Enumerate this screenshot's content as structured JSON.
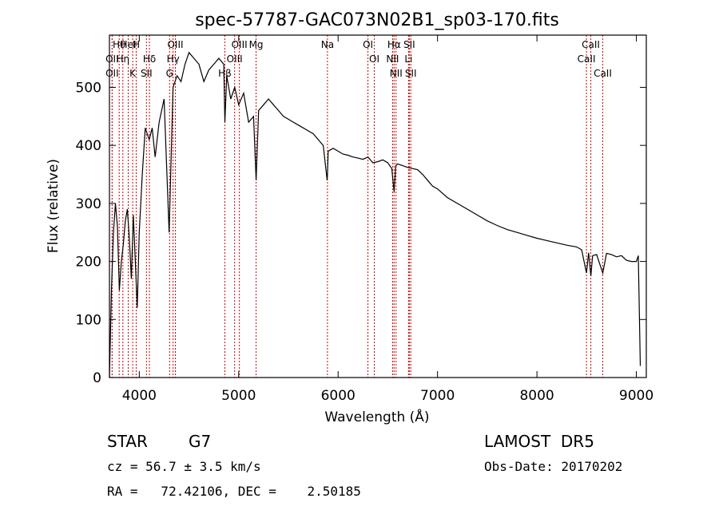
{
  "chart_data": {
    "type": "line",
    "title": "spec-57787-GAC073N02B1_sp03-170.fits",
    "xlabel": "Wavelength (Å)",
    "ylabel": "Flux (relative)",
    "xlim": [
      3700,
      9100
    ],
    "ylim": [
      0,
      590
    ],
    "x_ticks": [
      4000,
      5000,
      6000,
      7000,
      8000,
      9000
    ],
    "y_ticks": [
      0,
      100,
      200,
      300,
      400,
      500
    ],
    "grid": false,
    "series": [
      {
        "x": [
          3700,
          3720,
          3740,
          3760,
          3780,
          3800,
          3820,
          3840,
          3860,
          3880,
          3900,
          3920,
          3940,
          3960,
          3980,
          4000,
          4030,
          4060,
          4100,
          4130,
          4160,
          4200,
          4250,
          4300,
          4340,
          4380,
          4420,
          4460,
          4500,
          4550,
          4600,
          4650,
          4700,
          4750,
          4800,
          4850,
          4861,
          4880,
          4920,
          4960,
          5000,
          5050,
          5100,
          5150,
          5175,
          5200,
          5250,
          5300,
          5350,
          5400,
          5450,
          5500,
          5550,
          5600,
          5650,
          5700,
          5750,
          5800,
          5850,
          5890,
          5893,
          5900,
          5950,
          6000,
          6050,
          6100,
          6150,
          6200,
          6250,
          6300,
          6350,
          6400,
          6450,
          6500,
          6540,
          6563,
          6580,
          6600,
          6650,
          6700,
          6750,
          6800,
          6850,
          6900,
          6950,
          7000,
          7100,
          7200,
          7300,
          7400,
          7500,
          7600,
          7700,
          7800,
          7900,
          8000,
          8100,
          8200,
          8300,
          8400,
          8450,
          8498,
          8520,
          8542,
          8560,
          8600,
          8662,
          8700,
          8750,
          8800,
          8850,
          8900,
          8950,
          9000,
          9020,
          9040
        ],
        "y": [
          0,
          150,
          250,
          300,
          260,
          150,
          200,
          230,
          270,
          290,
          240,
          170,
          280,
          200,
          120,
          250,
          350,
          430,
          410,
          430,
          380,
          440,
          480,
          250,
          500,
          520,
          510,
          540,
          560,
          550,
          540,
          510,
          530,
          540,
          550,
          540,
          440,
          520,
          480,
          500,
          470,
          490,
          440,
          450,
          340,
          460,
          470,
          480,
          470,
          460,
          450,
          445,
          440,
          435,
          430,
          425,
          420,
          410,
          400,
          340,
          350,
          390,
          395,
          390,
          385,
          383,
          380,
          378,
          376,
          380,
          370,
          372,
          375,
          370,
          360,
          320,
          365,
          368,
          365,
          362,
          360,
          358,
          350,
          340,
          330,
          325,
          310,
          300,
          290,
          280,
          270,
          262,
          255,
          250,
          245,
          240,
          236,
          232,
          228,
          225,
          220,
          180,
          215,
          175,
          210,
          212,
          180,
          214,
          212,
          208,
          210,
          202,
          200,
          200,
          210,
          20
        ]
      }
    ],
    "lines": [
      {
        "label": "Hθ",
        "x": 3798
      },
      {
        "label": "OII",
        "x": 3727
      },
      {
        "label": "OII",
        "x": 3727
      },
      {
        "label": "HeI",
        "x": 3889
      },
      {
        "label": "Hη",
        "x": 3835
      },
      {
        "label": "K",
        "x": 3934
      },
      {
        "label": "H",
        "x": 3969
      },
      {
        "label": "Hδ",
        "x": 4102
      },
      {
        "label": "SII",
        "x": 4072
      },
      {
        "label": "OIII",
        "x": 4363
      },
      {
        "label": "Hγ",
        "x": 4340
      },
      {
        "label": "G",
        "x": 4305
      },
      {
        "label": "OIII",
        "x": 5007
      },
      {
        "label": "OIII",
        "x": 4959
      },
      {
        "label": "Hβ",
        "x": 4861
      },
      {
        "label": "Mg",
        "x": 5175
      },
      {
        "label": "Na",
        "x": 5893
      },
      {
        "label": "OI",
        "x": 6300
      },
      {
        "label": "OI",
        "x": 6364
      },
      {
        "label": "Hα",
        "x": 6563
      },
      {
        "label": "NII",
        "x": 6548
      },
      {
        "label": "NII",
        "x": 6583
      },
      {
        "label": "SII",
        "x": 6716
      },
      {
        "label": "Li",
        "x": 6708
      },
      {
        "label": "SII",
        "x": 6731
      },
      {
        "label": "CaII",
        "x": 8542
      },
      {
        "label": "CaII",
        "x": 8498
      },
      {
        "label": "CaII",
        "x": 8662
      }
    ]
  },
  "footer": {
    "object_class": "STAR",
    "subclass": "G7",
    "survey": "LAMOST  DR5",
    "cz": "cz = 56.7 ± 3.5 km/s",
    "obs_date": "Obs-Date: 20170202",
    "coords": "RA =   72.42106, DEC =    2.50185"
  },
  "colors": {
    "line_marker": "#cc0000",
    "spectrum": "#000000"
  }
}
